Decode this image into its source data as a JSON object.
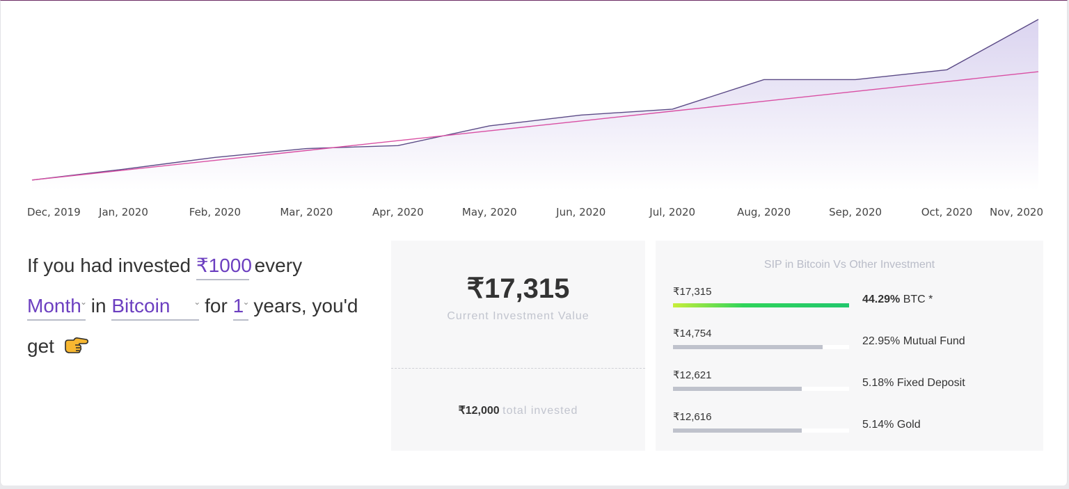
{
  "chart_data": {
    "type": "area",
    "categories": [
      "Dec, 2019",
      "Jan, 2020",
      "Feb, 2020",
      "Mar, 2020",
      "Apr, 2020",
      "May, 2020",
      "Jun, 2020",
      "Jul, 2020",
      "Aug, 2020",
      "Sep, 2020",
      "Oct, 2020",
      "Nov, 2020"
    ],
    "series": [
      {
        "values": [
          1000,
          2100,
          3300,
          4200,
          4500,
          6500,
          7600,
          8200,
          11200,
          11200,
          12200,
          17315
        ],
        "color": "#5b4a86",
        "fill": "#e6e1f4"
      },
      {
        "values": [
          1000,
          2000,
          3000,
          4000,
          5000,
          6000,
          7000,
          8000,
          9000,
          10000,
          11000,
          12000
        ],
        "color": "#d94fa3"
      }
    ],
    "ylim": [
      0,
      17800
    ],
    "grid": false,
    "legend": "none"
  },
  "sentence": {
    "p1": "If you had invested",
    "amount": "₹1000",
    "p2": "every",
    "period": "Month",
    "p3": "in",
    "coin": "Bitcoin",
    "p4": "for",
    "years": "1",
    "p5": "years, you'd",
    "p6": "get"
  },
  "current": {
    "value": "₹17,315",
    "caption": "Current Investment Value",
    "total_amount": "₹12,000",
    "total_label": "total invested"
  },
  "comparison": {
    "title": "SIP in Bitcoin Vs Other Investment",
    "rows": [
      {
        "value": "₹17,315",
        "pct": "44.29%",
        "name": "BTC *",
        "fill": 1.0
      },
      {
        "value": "₹14,754",
        "pct": "22.95%",
        "name": "Mutual Fund",
        "fill": 0.85
      },
      {
        "value": "₹12,621",
        "pct": "5.18%",
        "name": "Fixed Deposit",
        "fill": 0.73
      },
      {
        "value": "₹12,616",
        "pct": "5.14%",
        "name": "Gold",
        "fill": 0.73
      }
    ]
  },
  "colors": {
    "accent": "#6c3fc0",
    "btc_bar": "#22c76d",
    "other_bar": "#bfc2cc"
  },
  "icons": {
    "pointer": "pointing-right-hand-icon",
    "dropdown": "chevron-down-icon"
  }
}
